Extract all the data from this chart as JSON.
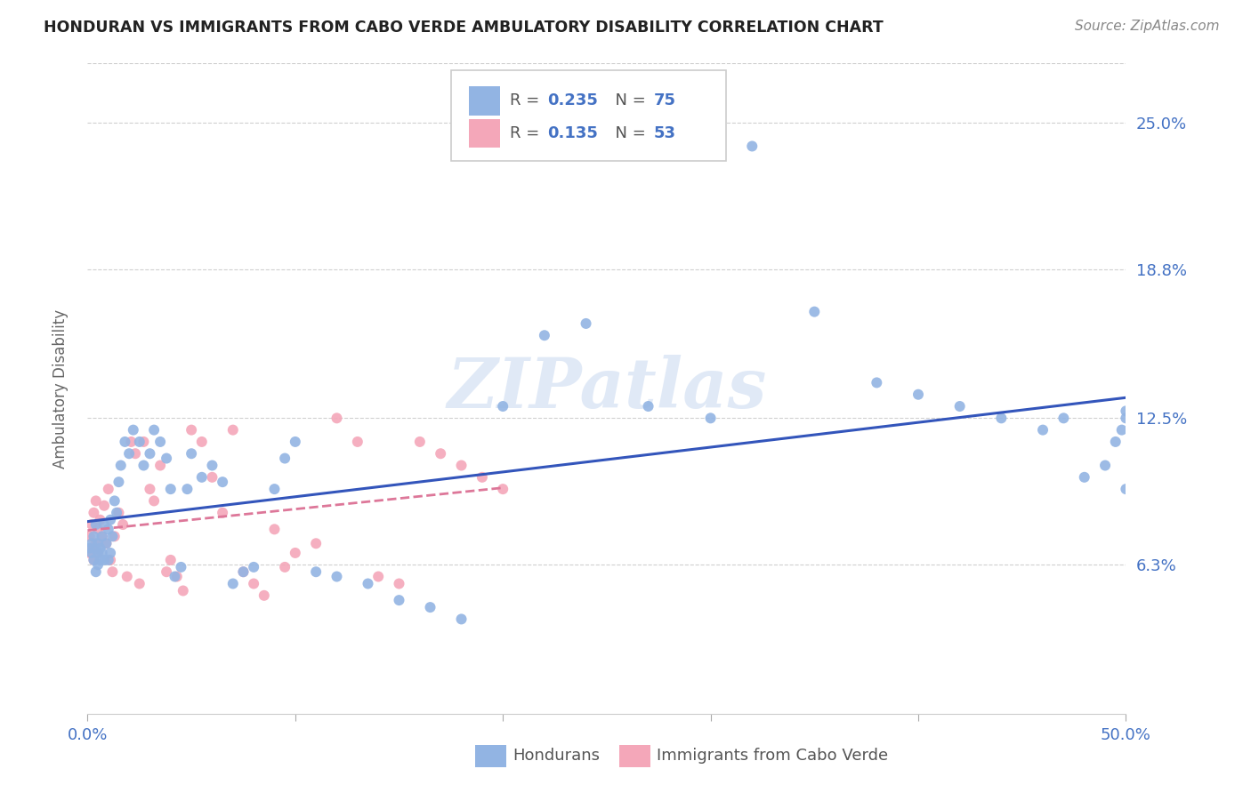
{
  "title": "HONDURAN VS IMMIGRANTS FROM CABO VERDE AMBULATORY DISABILITY CORRELATION CHART",
  "source": "Source: ZipAtlas.com",
  "ylabel": "Ambulatory Disability",
  "xlim": [
    0.0,
    0.5
  ],
  "ylim": [
    0.0,
    0.275
  ],
  "ytick_vals": [
    0.063,
    0.125,
    0.188,
    0.25
  ],
  "ytick_labels": [
    "6.3%",
    "12.5%",
    "18.8%",
    "25.0%"
  ],
  "xtick_vals": [
    0.0,
    0.1,
    0.2,
    0.3,
    0.4,
    0.5
  ],
  "xtick_labels": [
    "0.0%",
    "",
    "",
    "",
    "",
    "50.0%"
  ],
  "legend1_r": "0.235",
  "legend1_n": "75",
  "legend2_r": "0.135",
  "legend2_n": "53",
  "color_honduran": "#92b4e3",
  "color_cabo": "#f4a7b9",
  "color_line_hon": "#3355bb",
  "color_line_cabo": "#dd7799",
  "color_text_blue": "#4472c4",
  "color_axis_label": "#666666",
  "color_tick": "#4472c4",
  "background": "#ffffff",
  "watermark": "ZIPatlas",
  "hon_x": [
    0.001,
    0.002,
    0.002,
    0.003,
    0.003,
    0.004,
    0.004,
    0.005,
    0.005,
    0.005,
    0.006,
    0.006,
    0.007,
    0.007,
    0.008,
    0.008,
    0.009,
    0.01,
    0.01,
    0.011,
    0.011,
    0.012,
    0.013,
    0.014,
    0.015,
    0.016,
    0.018,
    0.02,
    0.022,
    0.025,
    0.027,
    0.03,
    0.032,
    0.035,
    0.038,
    0.04,
    0.042,
    0.045,
    0.048,
    0.05,
    0.055,
    0.06,
    0.065,
    0.07,
    0.075,
    0.08,
    0.09,
    0.095,
    0.1,
    0.11,
    0.12,
    0.135,
    0.15,
    0.165,
    0.18,
    0.2,
    0.22,
    0.24,
    0.27,
    0.3,
    0.32,
    0.35,
    0.38,
    0.4,
    0.42,
    0.44,
    0.46,
    0.47,
    0.48,
    0.49,
    0.495,
    0.498,
    0.5,
    0.5,
    0.5
  ],
  "hon_y": [
    0.07,
    0.068,
    0.072,
    0.065,
    0.075,
    0.06,
    0.08,
    0.063,
    0.068,
    0.072,
    0.065,
    0.07,
    0.068,
    0.075,
    0.065,
    0.08,
    0.072,
    0.078,
    0.065,
    0.082,
    0.068,
    0.075,
    0.09,
    0.085,
    0.098,
    0.105,
    0.115,
    0.11,
    0.12,
    0.115,
    0.105,
    0.11,
    0.12,
    0.115,
    0.108,
    0.095,
    0.058,
    0.062,
    0.095,
    0.11,
    0.1,
    0.105,
    0.098,
    0.055,
    0.06,
    0.062,
    0.095,
    0.108,
    0.115,
    0.06,
    0.058,
    0.055,
    0.048,
    0.045,
    0.04,
    0.13,
    0.16,
    0.165,
    0.13,
    0.125,
    0.24,
    0.17,
    0.14,
    0.135,
    0.13,
    0.125,
    0.12,
    0.125,
    0.1,
    0.105,
    0.115,
    0.12,
    0.095,
    0.128,
    0.125
  ],
  "cabo_x": [
    0.001,
    0.001,
    0.002,
    0.002,
    0.003,
    0.003,
    0.004,
    0.004,
    0.005,
    0.005,
    0.006,
    0.007,
    0.008,
    0.009,
    0.01,
    0.011,
    0.012,
    0.013,
    0.015,
    0.017,
    0.019,
    0.021,
    0.023,
    0.025,
    0.027,
    0.03,
    0.032,
    0.035,
    0.038,
    0.04,
    0.043,
    0.046,
    0.05,
    0.055,
    0.06,
    0.065,
    0.07,
    0.075,
    0.08,
    0.085,
    0.09,
    0.095,
    0.1,
    0.11,
    0.12,
    0.13,
    0.14,
    0.15,
    0.16,
    0.17,
    0.18,
    0.19,
    0.2
  ],
  "cabo_y": [
    0.068,
    0.075,
    0.07,
    0.08,
    0.065,
    0.085,
    0.072,
    0.09,
    0.068,
    0.078,
    0.082,
    0.075,
    0.088,
    0.072,
    0.095,
    0.065,
    0.06,
    0.075,
    0.085,
    0.08,
    0.058,
    0.115,
    0.11,
    0.055,
    0.115,
    0.095,
    0.09,
    0.105,
    0.06,
    0.065,
    0.058,
    0.052,
    0.12,
    0.115,
    0.1,
    0.085,
    0.12,
    0.06,
    0.055,
    0.05,
    0.078,
    0.062,
    0.068,
    0.072,
    0.125,
    0.115,
    0.058,
    0.055,
    0.115,
    0.11,
    0.105,
    0.1,
    0.095
  ]
}
